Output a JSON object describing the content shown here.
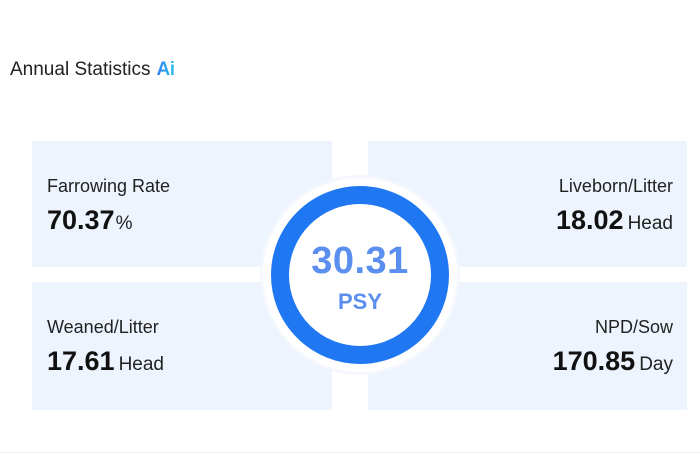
{
  "header": {
    "title": "Annual Statistics",
    "ai_badge": "Ai"
  },
  "colors": {
    "panel_bg": "#edf4fe",
    "ring": "#1f78f2",
    "center_text": "#5a8ff0"
  },
  "stats": {
    "farrowing_rate": {
      "label": "Farrowing Rate",
      "value": "70.37",
      "unit": "%"
    },
    "liveborn_litter": {
      "label": "Liveborn/Litter",
      "value": "18.02",
      "unit": "Head"
    },
    "weaned_litter": {
      "label": "Weaned/Litter",
      "value": "17.61",
      "unit": "Head"
    },
    "npd_sow": {
      "label": "NPD/Sow",
      "value": "170.85",
      "unit": "Day"
    }
  },
  "center": {
    "value": "30.31",
    "unit": "PSY"
  }
}
